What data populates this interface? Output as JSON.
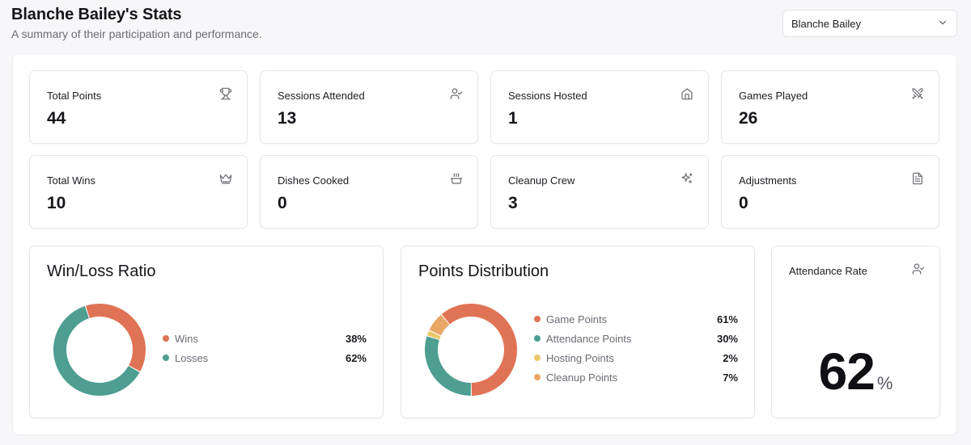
{
  "header": {
    "title": "Blanche Bailey's Stats",
    "subtitle": "A summary of their participation and performance.",
    "player_select_value": "Blanche Bailey"
  },
  "stats": [
    {
      "label": "Total Points",
      "value": "44",
      "icon": "trophy-icon"
    },
    {
      "label": "Sessions Attended",
      "value": "13",
      "icon": "user-check-icon"
    },
    {
      "label": "Sessions Hosted",
      "value": "1",
      "icon": "home-icon"
    },
    {
      "label": "Games Played",
      "value": "26",
      "icon": "swords-icon"
    },
    {
      "label": "Total Wins",
      "value": "10",
      "icon": "crown-icon"
    },
    {
      "label": "Dishes Cooked",
      "value": "0",
      "icon": "cooking-pot-icon"
    },
    {
      "label": "Cleanup Crew",
      "value": "3",
      "icon": "sparkles-icon"
    },
    {
      "label": "Adjustments",
      "value": "0",
      "icon": "file-text-icon"
    }
  ],
  "win_loss": {
    "title": "Win/Loss Ratio",
    "items": [
      {
        "name": "Wins",
        "pct": "38%",
        "value": 38,
        "color": "#e07355"
      },
      {
        "name": "Losses",
        "pct": "62%",
        "value": 62,
        "color": "#4e9e92"
      }
    ]
  },
  "points_distribution": {
    "title": "Points Distribution",
    "items": [
      {
        "name": "Game Points",
        "pct": "61%",
        "value": 61,
        "color": "#e07355"
      },
      {
        "name": "Attendance Points",
        "pct": "30%",
        "value": 30,
        "color": "#4e9e92"
      },
      {
        "name": "Hosting Points",
        "pct": "2%",
        "value": 2,
        "color": "#e8c86a"
      },
      {
        "name": "Cleanup Points",
        "pct": "7%",
        "value": 7,
        "color": "#eaa866"
      }
    ]
  },
  "attendance": {
    "label": "Attendance Rate",
    "value": "62",
    "unit": "%",
    "icon": "user-check-icon"
  },
  "chart_data": [
    {
      "type": "pie",
      "title": "Win/Loss Ratio",
      "categories": [
        "Wins",
        "Losses"
      ],
      "values": [
        38,
        62
      ]
    },
    {
      "type": "pie",
      "title": "Points Distribution",
      "categories": [
        "Game Points",
        "Attendance Points",
        "Hosting Points",
        "Cleanup Points"
      ],
      "values": [
        61,
        30,
        2,
        7
      ]
    }
  ]
}
